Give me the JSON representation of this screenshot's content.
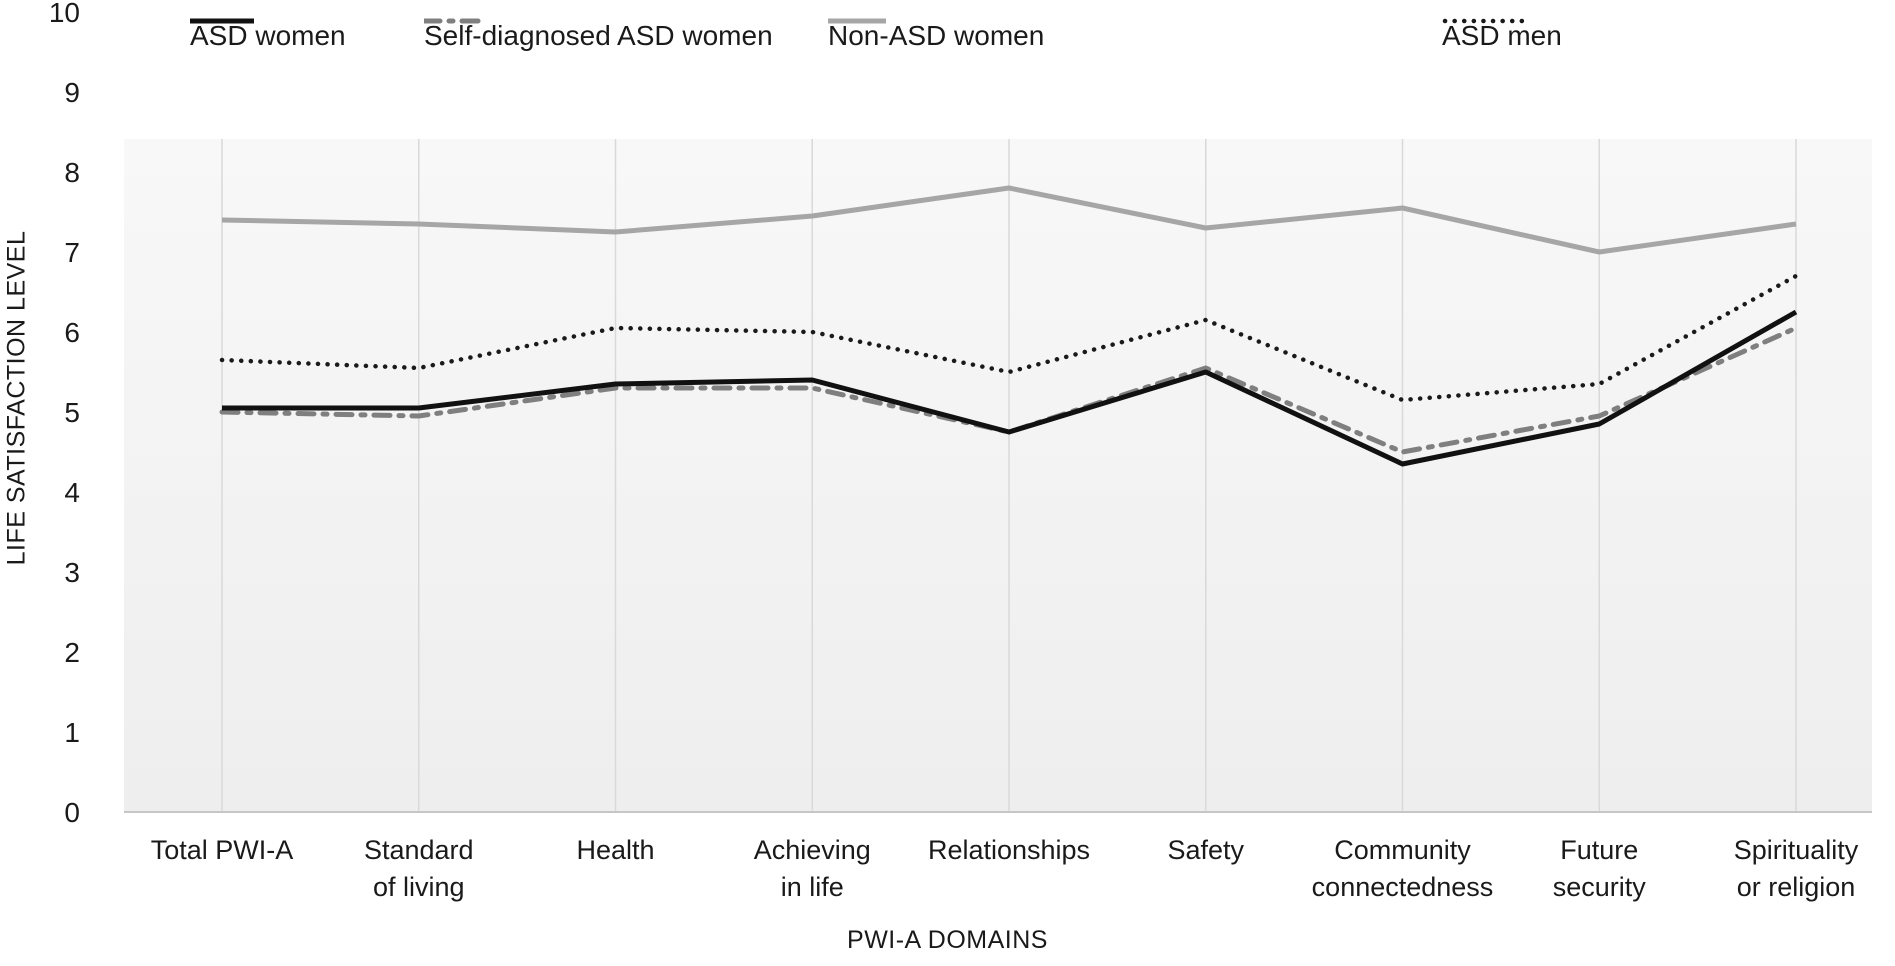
{
  "y_axis_title": "LIFE SATISFACTION LEVEL",
  "x_axis_title": "PWI-A DOMAINS",
  "chart_data": {
    "type": "line",
    "title": "",
    "xlabel": "PWI-A DOMAINS",
    "ylabel": "LIFE SATISFACTION LEVEL",
    "ylim": [
      0,
      10
    ],
    "y_ticks": [
      0,
      1,
      2,
      3,
      4,
      5,
      6,
      7,
      8,
      9,
      10
    ],
    "grid": "vertical",
    "legend_position": "top",
    "categories": [
      "Total PWI-A",
      "Standard of living",
      "Health",
      "Achieving in life",
      "Relationships",
      "Safety",
      "Community connectedness",
      "Future security",
      "Spirituality or religion"
    ],
    "category_labels": [
      "Total PWI-A",
      "Standard\nof living",
      "Health",
      "Achieving\nin life",
      "Relationships",
      "Safety",
      "Community\nconnectedness",
      "Future\nsecurity",
      "Spirituality\nor religion"
    ],
    "series": [
      {
        "name": "Non-ASD women",
        "style": "solid",
        "color": "#a6a6a6",
        "width": 5,
        "values": [
          7.4,
          7.35,
          7.25,
          7.45,
          7.8,
          7.3,
          7.55,
          7.0,
          7.35
        ]
      },
      {
        "name": "ASD men",
        "style": "dotted",
        "color": "#1a1a1a",
        "width": 4.5,
        "values": [
          5.65,
          5.55,
          6.05,
          6.0,
          5.5,
          6.15,
          5.15,
          5.35,
          6.7
        ]
      },
      {
        "name": "Self-diagnosed ASD women",
        "style": "dashed",
        "color": "#7f7f7f",
        "width": 5,
        "values": [
          5.0,
          4.95,
          5.3,
          5.3,
          4.75,
          5.55,
          4.5,
          4.95,
          6.05
        ]
      },
      {
        "name": "ASD women",
        "style": "solid",
        "color": "#111111",
        "width": 5,
        "values": [
          5.05,
          5.05,
          5.35,
          5.4,
          4.75,
          5.5,
          4.35,
          4.85,
          6.25
        ]
      }
    ],
    "colors": {
      "gridline": "#d9d9d9",
      "axis_line": "#c6c6c6",
      "plot_bg_top": "#f8f8f8",
      "plot_bg_bottom": "#eeeeee"
    }
  },
  "legend": {
    "order_note": "left to right as displayed",
    "items": [
      "ASD women",
      "Self-diagnosed ASD women",
      "Non-ASD women",
      "ASD men"
    ]
  }
}
